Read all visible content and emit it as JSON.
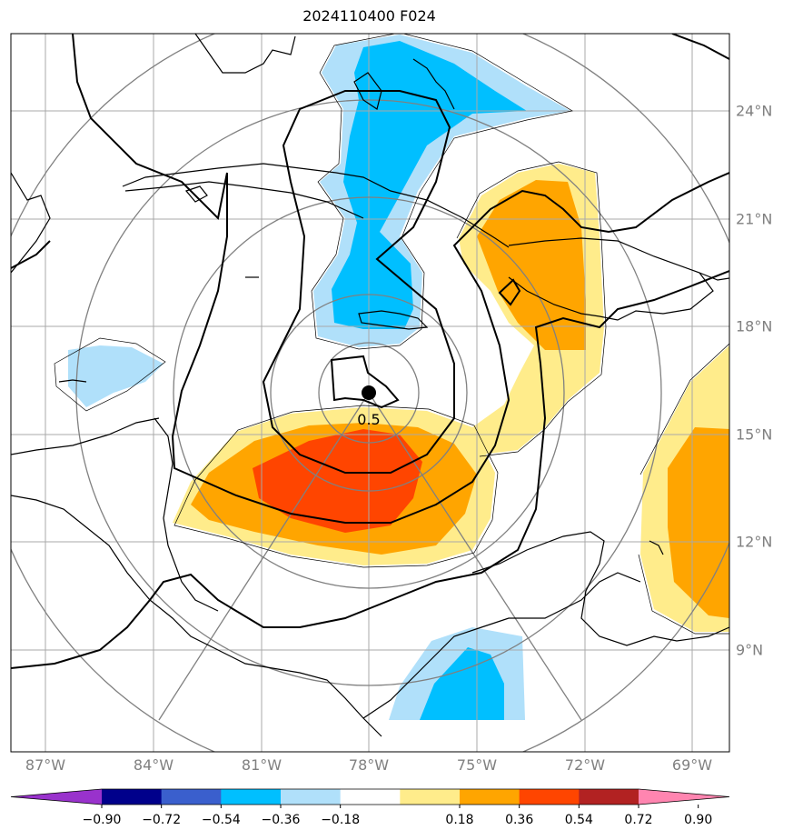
{
  "title": "2024110400 F024",
  "lon_ticks": [
    "87°W",
    "84°W",
    "81°W",
    "78°W",
    "75°W",
    "72°W",
    "69°W"
  ],
  "lat_ticks": [
    "24°N",
    "21°N",
    "18°N",
    "15°N",
    "12°N",
    "9°N"
  ],
  "center_marker_label": "0.5",
  "colorbar": {
    "labels": [
      "−0.90",
      "−0.72",
      "−0.54",
      "−0.36",
      "−0.18",
      "0.18",
      "0.36",
      "0.54",
      "0.72",
      "0.90"
    ],
    "colors": [
      "#9932cc",
      "#00008b",
      "#3a5fcd",
      "#00bfff",
      "#b0e0fa",
      "#ffffff",
      "#ffec8b",
      "#ffa500",
      "#ff4500",
      "#b22222",
      "#ff85b0"
    ]
  },
  "colors": {
    "neg_light": "#b0e0fa",
    "neg_mid": "#00bfff",
    "pos_light": "#ffec8b",
    "pos_mid": "#ffa500",
    "pos_high": "#ff4500",
    "grid": "#a9a9a9",
    "range_rings": "#808080"
  }
}
